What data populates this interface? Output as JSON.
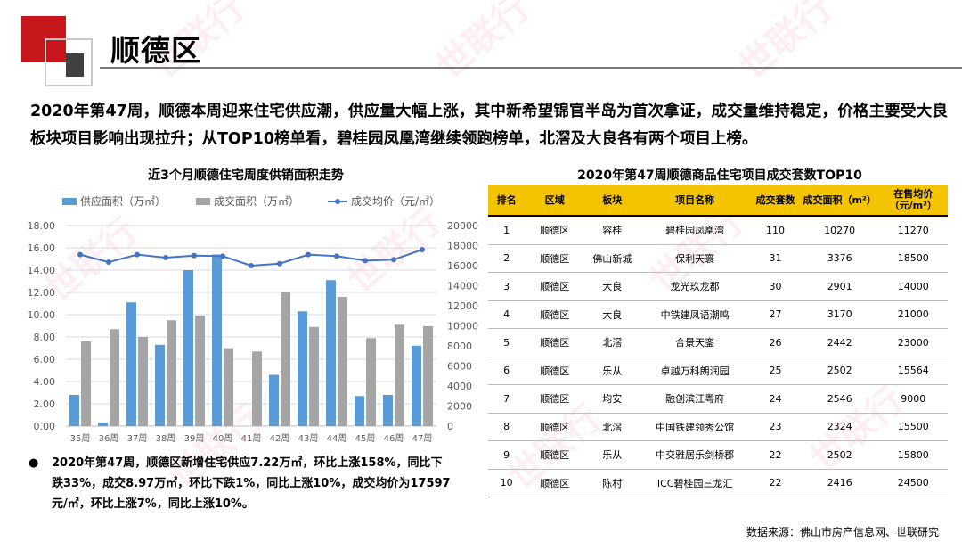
{
  "header": {
    "title": "顺德区"
  },
  "summary": "2020年第47周，顺德本周迎来住宅供应潮，供应量大幅上涨，其中新希望锦官半岛为首次拿证，成交量维持稳定，价格主要受大良板块项目影响出现拉升；从TOP10榜单看，碧桂园凤凰湾继续领跑榜单，北滘及大良各有两个项目上榜。",
  "watermark": "世联行",
  "colors": {
    "supply": "#5b9bd5",
    "deal": "#a5a5a5",
    "price": "#4472c4",
    "brand_red": "#c8161d",
    "table_header": "#f5c400"
  },
  "chart_data": {
    "type": "bar",
    "title": "近3个月顺德住宅周度供销面积走势",
    "categories": [
      "35周",
      "36周",
      "37周",
      "38周",
      "39周",
      "40周",
      "41周",
      "42周",
      "43周",
      "44周",
      "45周",
      "46周",
      "47周"
    ],
    "series": [
      {
        "name": "供应面积（万㎡）",
        "type": "bar",
        "axis": "left",
        "values": [
          2.8,
          0.3,
          11.1,
          7.3,
          14.0,
          15.4,
          0.0,
          4.6,
          10.3,
          13.1,
          2.7,
          2.8,
          7.22
        ]
      },
      {
        "name": "成交面积（万㎡）",
        "type": "bar",
        "axis": "left",
        "values": [
          7.6,
          8.7,
          8.0,
          9.5,
          9.9,
          7.0,
          6.7,
          12.0,
          8.9,
          11.6,
          7.9,
          9.1,
          8.97
        ]
      },
      {
        "name": "成交均价（元/㎡）",
        "type": "line",
        "axis": "right",
        "values": [
          17100,
          16350,
          17100,
          16800,
          17000,
          16950,
          16000,
          16200,
          17100,
          16950,
          16500,
          16600,
          17597
        ]
      }
    ],
    "y_left": {
      "min": 0,
      "max": 18,
      "step": 2,
      "tick_labels": [
        "0.00",
        "2.00",
        "4.00",
        "6.00",
        "8.00",
        "10.00",
        "12.00",
        "14.00",
        "16.00",
        "18.00"
      ]
    },
    "y_right": {
      "min": 0,
      "max": 20000,
      "step": 2000,
      "tick_labels": [
        "0",
        "2000",
        "4000",
        "6000",
        "8000",
        "10000",
        "12000",
        "14000",
        "16000",
        "18000",
        "20000"
      ]
    },
    "grid": true,
    "legend_position": "top"
  },
  "note": "2020年第47周，顺德区新增住宅供应7.22万㎡，环比上涨158%，同比下跌33%，成交8.97万㎡，环比下跌1%，同比上涨10%，成交均价为17597元/㎡，环比上涨7%，同比上涨10%。",
  "note_bullet": "●",
  "table": {
    "title": "2020年第47周顺德商品住宅项目成交套数TOP10",
    "headers": [
      "排名",
      "区域",
      "板块",
      "项目名称",
      "成交套数",
      "成交面积（m²）",
      "在售均价\n（元/m²）"
    ],
    "rows": [
      [
        "1",
        "顺德区",
        "容桂",
        "碧桂园凤凰湾",
        "110",
        "10270",
        "11270"
      ],
      [
        "2",
        "顺德区",
        "佛山新城",
        "保利天寰",
        "31",
        "3376",
        "18500"
      ],
      [
        "3",
        "顺德区",
        "大良",
        "龙光玖龙郡",
        "30",
        "2901",
        "14000"
      ],
      [
        "4",
        "顺德区",
        "大良",
        "中铁建凤语潮鸣",
        "27",
        "3170",
        "21000"
      ],
      [
        "5",
        "顺德区",
        "北滘",
        "合景天銮",
        "26",
        "2442",
        "23000"
      ],
      [
        "6",
        "顺德区",
        "乐从",
        "卓越万科朗润园",
        "25",
        "2502",
        "15564"
      ],
      [
        "7",
        "顺德区",
        "均安",
        "融创滨江粤府",
        "24",
        "2546",
        "9000"
      ],
      [
        "8",
        "顺德区",
        "北滘",
        "中国铁建领秀公馆",
        "23",
        "2324",
        "15500"
      ],
      [
        "9",
        "顺德区",
        "乐从",
        "中交雅居乐剑桥郡",
        "22",
        "2502",
        "15800"
      ],
      [
        "10",
        "顺德区",
        "陈村",
        "ICC碧桂园三龙汇",
        "22",
        "2416",
        "24500"
      ]
    ]
  },
  "source": "数据来源：佛山市房产信息网、世联研究"
}
